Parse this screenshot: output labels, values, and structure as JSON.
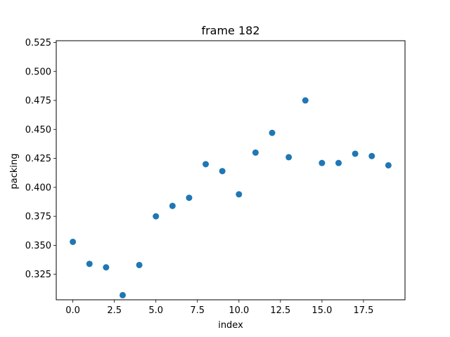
{
  "chart_data": {
    "type": "scatter",
    "title": "frame 182",
    "xlabel": "index",
    "ylabel": "packing",
    "xlim": [
      -1.0,
      20.0
    ],
    "ylim": [
      0.303,
      0.5265
    ],
    "x_ticks": [
      0.0,
      2.5,
      5.0,
      7.5,
      10.0,
      12.5,
      15.0,
      17.5
    ],
    "x_tick_labels": [
      "0.0",
      "2.5",
      "5.0",
      "7.5",
      "10.0",
      "12.5",
      "15.0",
      "17.5"
    ],
    "y_ticks": [
      0.325,
      0.35,
      0.375,
      0.4,
      0.425,
      0.45,
      0.475,
      0.5,
      0.525
    ],
    "y_tick_labels": [
      "0.325",
      "0.350",
      "0.375",
      "0.400",
      "0.425",
      "0.450",
      "0.475",
      "0.500",
      "0.525"
    ],
    "grid": false,
    "marker_color": "#1f77b4",
    "series": [
      {
        "x": [
          0,
          1,
          2,
          3,
          4,
          5,
          6,
          7,
          8,
          9,
          10,
          11,
          12,
          13,
          14,
          15,
          16,
          17,
          18,
          19
        ],
        "y": [
          0.353,
          0.334,
          0.331,
          0.307,
          0.333,
          0.375,
          0.384,
          0.391,
          0.42,
          0.414,
          0.394,
          0.43,
          0.447,
          0.426,
          0.475,
          0.421,
          0.421,
          0.429,
          0.427,
          0.419
        ]
      }
    ]
  }
}
